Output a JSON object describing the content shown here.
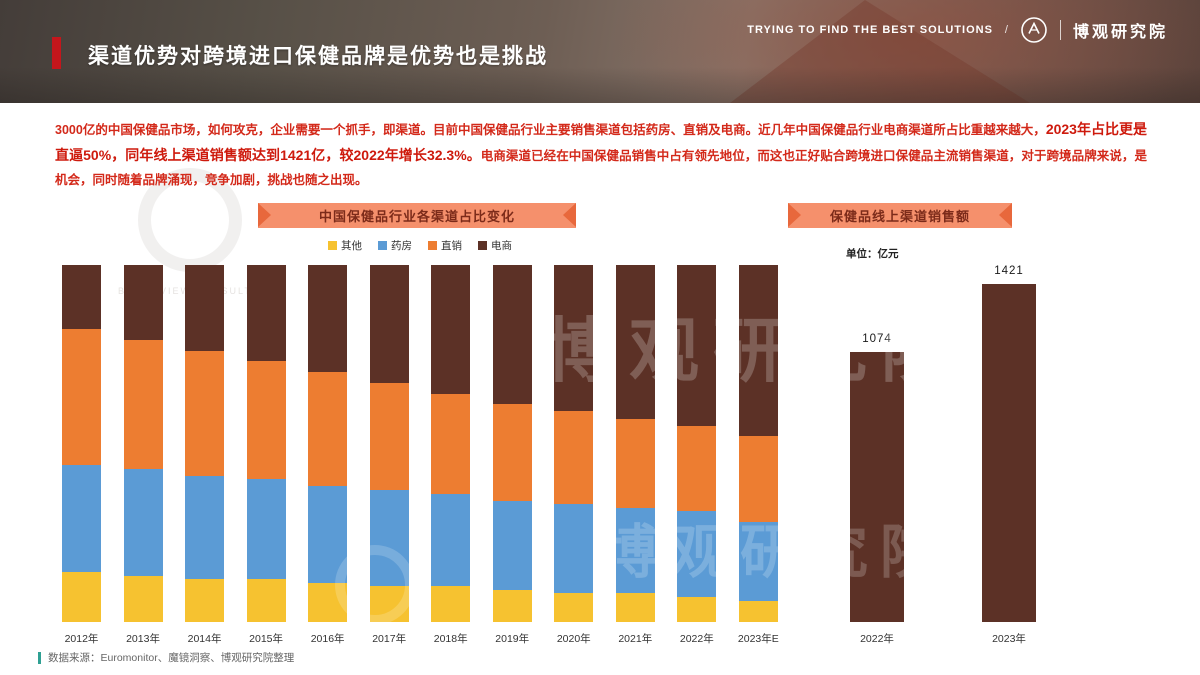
{
  "header": {
    "tagline": "TRYING TO FIND THE BEST SOLUTIONS",
    "separator": "/",
    "brand": "博观研究院",
    "title": "渠道优势对跨境进口保健品牌是优势也是挑战"
  },
  "paragraph": {
    "segments": [
      {
        "text": "3000亿的中国保健品市场，如何攻克，企业需要一个抓手，即渠道。目前中国保健品行业主要销售渠道包括药房、直销及电商。近几年中国保健品行业电商渠道所占比重越来越大，",
        "bold": false
      },
      {
        "text": "2023年占比更是直逼50%，同年线上渠道销售额达到1421亿，较2022年增长32.3%。",
        "bold": true
      },
      {
        "text": "电商渠道已经在中国保健品销售中占有领先地位，而这也正好贴合跨境进口保健品主流销售渠道，对于跨境品牌来说，是机会，同时随着品牌涌现，竞争加剧，挑战也随之出现。",
        "bold": false
      }
    ]
  },
  "chart_data": [
    {
      "type": "bar",
      "stacked": true,
      "percent": true,
      "title": "中国保健品行业各渠道占比变化",
      "categories": [
        "2012年",
        "2013年",
        "2014年",
        "2015年",
        "2016年",
        "2017年",
        "2018年",
        "2019年",
        "2020年",
        "2021年",
        "2022年",
        "2023年E"
      ],
      "series": [
        {
          "name": "其他",
          "color": "#F6C230",
          "values": [
            14,
            13,
            12,
            12,
            11,
            10,
            10,
            9,
            8,
            8,
            7,
            6
          ]
        },
        {
          "name": "药房",
          "color": "#5B9BD5",
          "values": [
            30,
            30,
            29,
            28,
            27,
            27,
            26,
            25,
            25,
            24,
            24,
            22
          ]
        },
        {
          "name": "直销",
          "color": "#ED7D31",
          "values": [
            38,
            36,
            35,
            33,
            32,
            30,
            28,
            27,
            26,
            25,
            24,
            24
          ]
        },
        {
          "name": "电商",
          "color": "#5C3126",
          "values": [
            18,
            21,
            24,
            27,
            30,
            33,
            36,
            39,
            41,
            43,
            45,
            48
          ]
        }
      ],
      "legend_position": "top",
      "ylim": [
        0,
        100
      ],
      "grid": false
    },
    {
      "type": "bar",
      "title": "保健品线上渠道销售额",
      "unit_label": "单位：亿元",
      "categories": [
        "2022年",
        "2023年"
      ],
      "values": [
        1074,
        1421
      ],
      "bar_color": "#5C3126",
      "ylim": [
        0,
        1500
      ],
      "grid": false
    }
  ],
  "footer": {
    "source": "数据来源：Euromonitor、魔镜洞察、博观研究院整理"
  },
  "watermark": {
    "brand": "博观研究院",
    "brand_en": "BROADVIEW CONSULTING"
  }
}
